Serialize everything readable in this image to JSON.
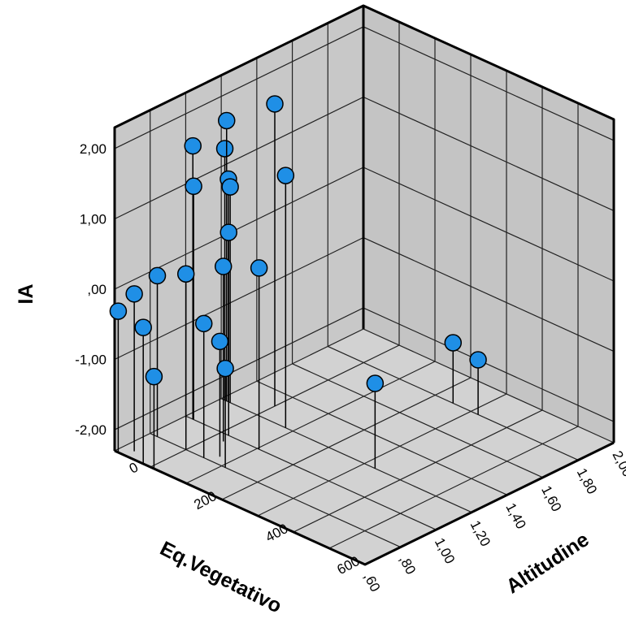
{
  "chart_data": {
    "type": "scatter",
    "variant": "3d-scatter-with-drop-lines",
    "zlabel": "IA",
    "xlabel": "Eq.Vegetativo",
    "ylabel": "Altitudine",
    "z_ticks": [
      "2,00",
      "1,00",
      ",00",
      "-1,00",
      "-2,00"
    ],
    "x_ticks": [
      "2,00",
      "1,80",
      "1,60",
      "1,40",
      "1,20",
      "1,00",
      ",80",
      ",60"
    ],
    "y_ticks": [
      "600",
      "400",
      "200",
      "0"
    ],
    "zlim": [
      -2.0,
      2.0
    ],
    "xlim": [
      0.6,
      2.0
    ],
    "ylim": [
      0,
      700
    ],
    "grid": true,
    "marker_color": "#1f8fe6",
    "wall_color": "#c8c8c8",
    "floor_color": "#d2d2d2",
    "points": [
      {
        "eq": 1.3,
        "alt": 100,
        "ia": 2.0
      },
      {
        "eq": 1.2,
        "alt": 180,
        "ia": 1.29
      },
      {
        "eq": 1.2,
        "alt": 15,
        "ia": 1.69
      },
      {
        "eq": 1.2,
        "alt": 10,
        "ia": 1.28
      },
      {
        "eq": 1.2,
        "alt": 20,
        "ia": 0.87
      },
      {
        "eq": 1.2,
        "alt": 25,
        "ia": 0.77
      },
      {
        "eq": 1.0,
        "alt": 20,
        "ia": 1.59
      },
      {
        "eq": 1.0,
        "alt": 22,
        "ia": 1.02
      },
      {
        "eq": 1.0,
        "alt": 120,
        "ia": 0.59
      },
      {
        "eq": 1.0,
        "alt": 205,
        "ia": 0.28
      },
      {
        "eq": 0.95,
        "alt": 130,
        "ia": 0.19
      },
      {
        "eq": 0.8,
        "alt": 20,
        "ia": -0.01
      },
      {
        "eq": 0.8,
        "alt": 100,
        "ia": 0.2
      },
      {
        "eq": 0.85,
        "alt": 170,
        "ia": -0.66
      },
      {
        "eq": 0.8,
        "alt": 150,
        "ia": -0.39
      },
      {
        "eq": 0.8,
        "alt": 210,
        "ia": -0.89
      },
      {
        "eq": 0.65,
        "alt": 30,
        "ia": -0.06
      },
      {
        "eq": 0.6,
        "alt": 80,
        "ia": -0.36
      },
      {
        "eq": 0.6,
        "alt": 10,
        "ia": -0.29
      },
      {
        "eq": 0.6,
        "alt": 110,
        "ia": -0.99
      },
      {
        "eq": 1.8,
        "alt": 350,
        "ia": -1.44
      },
      {
        "eq": 1.8,
        "alt": 420,
        "ia": -1.52
      },
      {
        "eq": 1.2,
        "alt": 430,
        "ia": -1.09
      }
    ]
  }
}
